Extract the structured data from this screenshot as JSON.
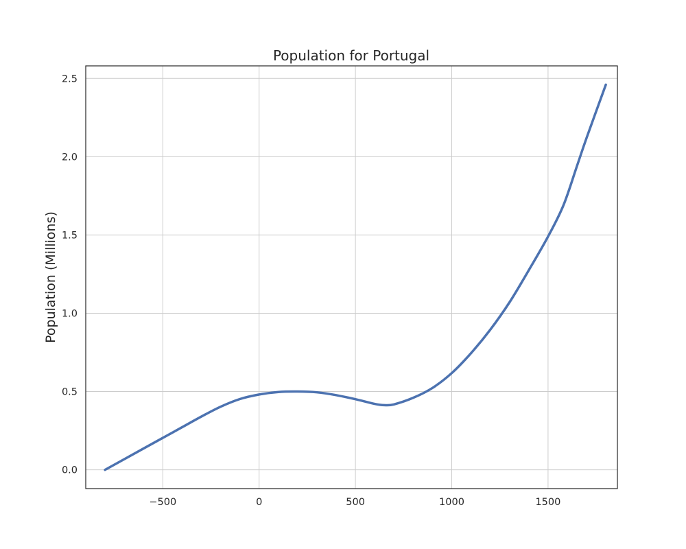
{
  "chart_data": {
    "type": "line",
    "title": "Population for Portugal",
    "xlabel": "",
    "ylabel": "Population (Millions)",
    "xlim": [
      -900,
      1860
    ],
    "ylim": [
      -0.12,
      2.58
    ],
    "xticks": [
      -500,
      0,
      500,
      1000,
      1500
    ],
    "xtick_labels": [
      "−500",
      "0",
      "500",
      "1000",
      "1500"
    ],
    "yticks": [
      0.0,
      0.5,
      1.0,
      1.5,
      2.0,
      2.5
    ],
    "ytick_labels": [
      "0.0",
      "0.5",
      "1.0",
      "1.5",
      "2.0",
      "2.5"
    ],
    "grid": true,
    "series": [
      {
        "color": "#4c72b0",
        "x": [
          -800,
          -700,
          -600,
          -500,
          -400,
          -300,
          -200,
          -100,
          0,
          100,
          200,
          300,
          400,
          500,
          600,
          650,
          700,
          800,
          900,
          1000,
          1100,
          1200,
          1300,
          1400,
          1500,
          1580,
          1650,
          1700,
          1800
        ],
        "y": [
          0.0,
          0.068,
          0.136,
          0.204,
          0.272,
          0.34,
          0.403,
          0.452,
          0.481,
          0.497,
          0.5,
          0.495,
          0.477,
          0.451,
          0.421,
          0.413,
          0.418,
          0.46,
          0.523,
          0.618,
          0.745,
          0.895,
          1.07,
          1.275,
          1.49,
          1.69,
          1.94,
          2.12,
          2.46
        ]
      }
    ]
  }
}
